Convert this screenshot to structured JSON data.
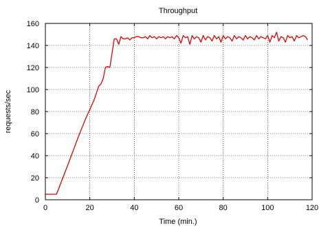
{
  "chart_data": {
    "type": "line",
    "title": "Throughput",
    "xlabel": "Time (min.)",
    "ylabel": "requests/sec",
    "xlim": [
      0,
      120
    ],
    "ylim": [
      0,
      160
    ],
    "grid": true,
    "xticks": [
      0,
      20,
      40,
      60,
      80,
      100,
      120
    ],
    "yticks": [
      0,
      20,
      40,
      60,
      80,
      100,
      120,
      140,
      160
    ],
    "series": [
      {
        "color": "#e00000",
        "x": [
          0,
          4,
          5,
          10,
          15,
          18,
          20,
          22,
          24,
          25,
          26,
          27,
          28,
          29,
          30,
          31,
          32,
          33,
          34,
          35,
          36,
          37,
          38,
          39,
          40,
          41,
          42,
          43,
          44,
          45,
          46,
          47,
          48,
          49,
          50,
          51,
          52,
          53,
          54,
          55,
          56,
          57,
          58,
          59,
          60,
          61,
          62,
          63,
          64,
          65,
          66,
          67,
          68,
          69,
          70,
          71,
          72,
          73,
          74,
          75,
          76,
          77,
          78,
          79,
          80,
          81,
          82,
          83,
          84,
          85,
          86,
          87,
          88,
          89,
          90,
          91,
          92,
          93,
          94,
          95,
          96,
          97,
          98,
          99,
          100,
          101,
          102,
          103,
          104,
          105,
          106,
          107,
          108,
          109,
          110,
          111,
          112,
          113,
          114,
          115,
          116,
          117,
          118
        ],
        "y": [
          5,
          5,
          5,
          31,
          58,
          73,
          82,
          91,
          103,
          105,
          110,
          120,
          121,
          120,
          133,
          146,
          146,
          141,
          148,
          146,
          146,
          147,
          145,
          147,
          147,
          148,
          148,
          147,
          147,
          148,
          146,
          149,
          147,
          148,
          146,
          148,
          147,
          148,
          146,
          148,
          147,
          148,
          146,
          149,
          147,
          142,
          149,
          147,
          148,
          141,
          149,
          146,
          148,
          147,
          143,
          149,
          145,
          148,
          147,
          144,
          149,
          146,
          148,
          143,
          149,
          146,
          148,
          147,
          144,
          149,
          146,
          148,
          147,
          145,
          149,
          146,
          148,
          147,
          145,
          149,
          146,
          148,
          147,
          146,
          149,
          143,
          149,
          147,
          152,
          144,
          148,
          147,
          143,
          149,
          147,
          148,
          144,
          149,
          147,
          148,
          149,
          148,
          145
        ]
      }
    ]
  }
}
